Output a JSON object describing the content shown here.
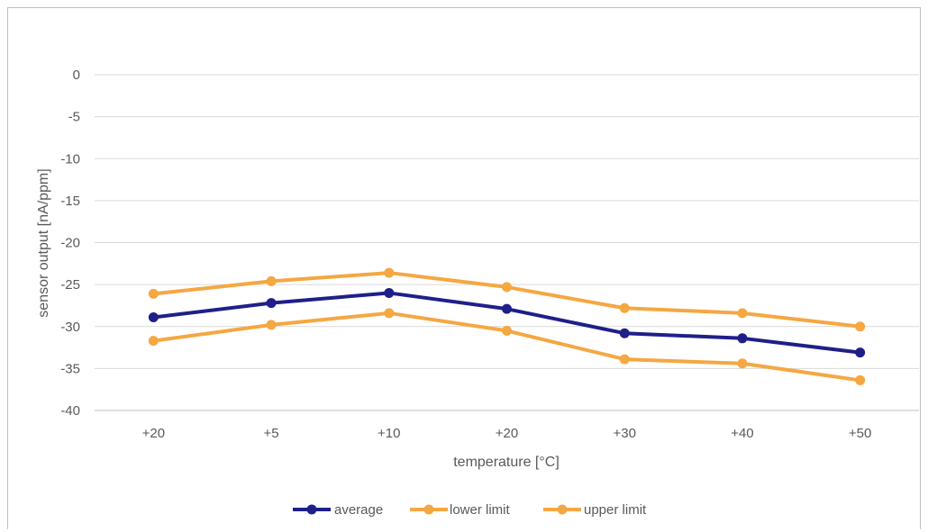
{
  "chart_data": {
    "type": "line",
    "title": "",
    "xlabel": "temperature [°C]",
    "ylabel": "sensor output [nA/ppm]",
    "categories": [
      "+20",
      "+5",
      "+10",
      "+20",
      "+30",
      "+40",
      "+50"
    ],
    "ylim": [
      -40,
      0
    ],
    "yticks": [
      0,
      -5,
      -10,
      -15,
      -20,
      -25,
      -30,
      -35,
      -40
    ],
    "grid": true,
    "legend_position": "bottom",
    "series": [
      {
        "name": "average",
        "color": "#1f1f8a",
        "values": [
          -28.9,
          -27.2,
          -26.0,
          -27.9,
          -30.8,
          -31.4,
          -33.1
        ]
      },
      {
        "name": "lower limit",
        "color": "#f5a742",
        "values": [
          -31.7,
          -29.8,
          -28.4,
          -30.5,
          -33.9,
          -34.4,
          -36.4
        ]
      },
      {
        "name": "upper limit",
        "color": "#f5a742",
        "values": [
          -26.1,
          -24.6,
          -23.6,
          -25.3,
          -27.8,
          -28.4,
          -30.0
        ]
      }
    ]
  }
}
